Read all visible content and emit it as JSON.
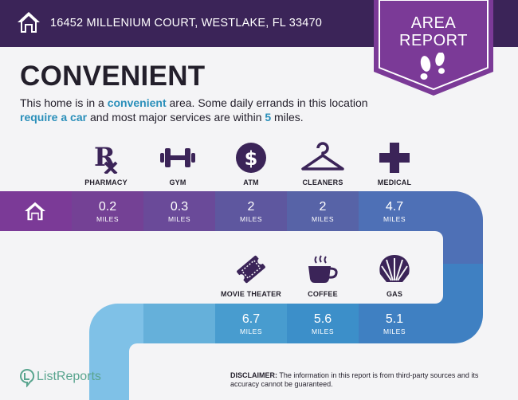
{
  "header": {
    "address": "16452 MILLENIUM COURT, WESTLAKE, FL 33470",
    "badge_line1": "AREA",
    "badge_line2": "REPORT"
  },
  "main": {
    "headline": "CONVENIENT",
    "desc_parts": {
      "p1": "This home is in a ",
      "h1": "convenient",
      "p2": " area. Some daily errands in this location ",
      "h2": "require a car",
      "p3": " and most major services are within ",
      "h3": "5",
      "p4": " miles."
    }
  },
  "amenities_row1": [
    {
      "label": "PHARMACY",
      "icon": "pharmacy-rx-icon",
      "value": "0.2",
      "unit": "MILES"
    },
    {
      "label": "GYM",
      "icon": "dumbbell-icon",
      "value": "0.3",
      "unit": "MILES"
    },
    {
      "label": "ATM",
      "icon": "dollar-icon",
      "value": "2",
      "unit": "MILES"
    },
    {
      "label": "CLEANERS",
      "icon": "hanger-icon",
      "value": "2",
      "unit": "MILES"
    },
    {
      "label": "MEDICAL",
      "icon": "medical-cross-icon",
      "value": "4.7",
      "unit": "MILES"
    }
  ],
  "amenities_row2": [
    {
      "label": "MOVIE THEATER",
      "icon": "ticket-icon",
      "value": "6.7",
      "unit": "MILES"
    },
    {
      "label": "COFFEE",
      "icon": "coffee-cup-icon",
      "value": "5.6",
      "unit": "MILES"
    },
    {
      "label": "GAS",
      "icon": "shell-icon",
      "value": "5.1",
      "unit": "MILES"
    }
  ],
  "footer": {
    "brand": "ListReports",
    "disclaimer_label": "DISCLAIMER:",
    "disclaimer_text": " The information in this report is from third-party sources and its accuracy cannot be guaranteed."
  },
  "colors": {
    "dark_purple": "#3b2458",
    "accent_purple": "#7b3a97",
    "accent_blue": "#2a8fba",
    "brand_green": "#5aa58f"
  }
}
